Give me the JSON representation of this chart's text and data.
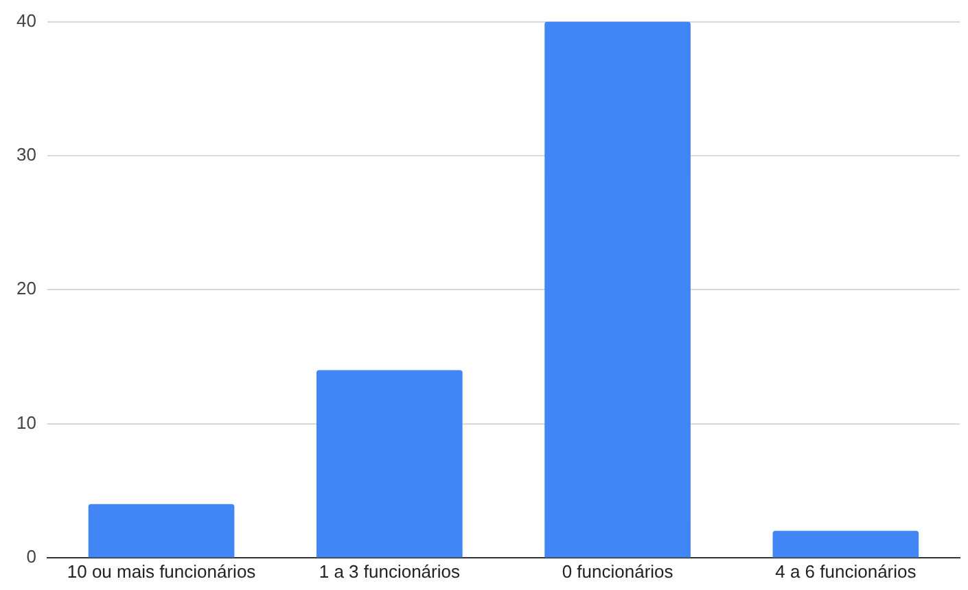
{
  "chart_data": {
    "type": "bar",
    "categories": [
      "10 ou mais funcionários",
      "1 a 3 funcionários",
      "0 funcionários",
      "4 a 6 funcionários"
    ],
    "values": [
      4,
      14,
      40,
      2
    ],
    "color": "#4285f4",
    "ylim": [
      0,
      40
    ],
    "yticks": [
      0,
      10,
      20,
      30,
      40
    ],
    "grid": "y",
    "legend": false
  }
}
